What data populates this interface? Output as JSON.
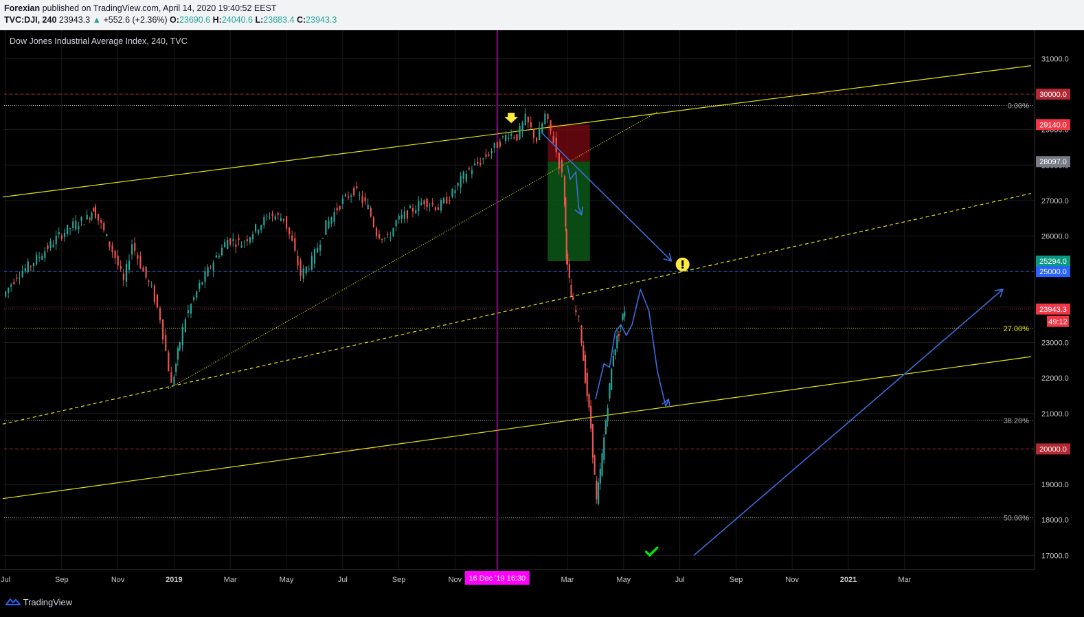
{
  "header": {
    "author": "Forexian",
    "published": "published on TradingView.com, April 14, 2020 19:40:52 EEST",
    "symbol": "TVC:DJI, 240",
    "last": "23943.3",
    "change_arrow": "▲",
    "change": "+552.6 (+2.36%)",
    "o_label": "O:",
    "o": "23690.6",
    "h_label": "H:",
    "h": "24040.6",
    "l_label": "L:",
    "l": "23683.4",
    "c_label": "C:",
    "c": "23943.3"
  },
  "footer": {
    "brand": "TradingView",
    "brand_icon": "tradingview-logo-icon"
  },
  "chart_data": {
    "type": "line",
    "title": "Dow Jones Industrial Average Index, 240, TVC",
    "ylim": [
      16600,
      31800
    ],
    "y_ticks": [
      "31000.0",
      "30000.0",
      "29000.0",
      "28000.0",
      "27000.0",
      "26000.0",
      "25000.0",
      "24000.0",
      "23000.0",
      "22000.0",
      "21000.0",
      "20000.0",
      "19000.0",
      "18000.0",
      "17000.0"
    ],
    "x_ticks": [
      "Jul",
      "Sep",
      "Nov",
      "2019",
      "Mar",
      "May",
      "Jul",
      "Sep",
      "Nov",
      "Mar",
      "May",
      "Jul",
      "Sep",
      "Nov",
      "2021",
      "Mar"
    ],
    "x_tick_month_index": [
      0,
      2,
      4,
      6,
      8,
      10,
      12,
      14,
      16,
      20,
      22,
      24,
      26,
      28,
      30,
      32
    ],
    "x_label_start": "Jul 2018",
    "x_last_month_index": 37.2,
    "series": [
      {
        "values_by_month_index": [
          [
            0,
            24300
          ],
          [
            0.5,
            24900
          ],
          [
            1,
            25200
          ],
          [
            1.5,
            25600
          ],
          [
            2,
            26000
          ],
          [
            2.5,
            26300
          ],
          [
            3,
            26500
          ],
          [
            3.2,
            26800
          ],
          [
            3.5,
            26300
          ],
          [
            4,
            25400
          ],
          [
            4.3,
            24700
          ],
          [
            4.6,
            25800
          ],
          [
            5,
            25000
          ],
          [
            5.3,
            24500
          ],
          [
            5.6,
            23700
          ],
          [
            6,
            21800
          ],
          [
            6.2,
            22700
          ],
          [
            6.5,
            23700
          ],
          [
            7,
            24600
          ],
          [
            7.5,
            25300
          ],
          [
            8,
            25900
          ],
          [
            8.5,
            25800
          ],
          [
            9,
            26200
          ],
          [
            9.5,
            26600
          ],
          [
            10,
            26500
          ],
          [
            10.3,
            25800
          ],
          [
            10.6,
            24900
          ],
          [
            11,
            25300
          ],
          [
            11.5,
            26300
          ],
          [
            12,
            26900
          ],
          [
            12.5,
            27300
          ],
          [
            13,
            26800
          ],
          [
            13.3,
            26100
          ],
          [
            13.7,
            25900
          ],
          [
            14,
            26400
          ],
          [
            14.5,
            26700
          ],
          [
            15,
            27000
          ],
          [
            15.5,
            26800
          ],
          [
            16,
            27200
          ],
          [
            16.5,
            27800
          ],
          [
            17,
            28100
          ],
          [
            17.5,
            28500
          ],
          [
            18,
            28900
          ],
          [
            18.3,
            28800
          ],
          [
            18.6,
            29300
          ],
          [
            19,
            28700
          ],
          [
            19.3,
            29400
          ],
          [
            19.6,
            28700
          ],
          [
            19.9,
            27700
          ],
          [
            20,
            25500
          ],
          [
            20.2,
            24300
          ],
          [
            20.5,
            23600
          ],
          [
            20.7,
            22000
          ],
          [
            20.9,
            20600
          ],
          [
            21.1,
            18500
          ],
          [
            21.3,
            19800
          ],
          [
            21.5,
            21300
          ],
          [
            21.7,
            22700
          ],
          [
            21.9,
            23300
          ],
          [
            22.1,
            23943.3
          ]
        ]
      }
    ],
    "annotations": {
      "horizontal_levels": [
        {
          "value": 30000,
          "style": "red-dashed"
        },
        {
          "value": 25000,
          "style": "blue-dashed"
        },
        {
          "value": 23943.3,
          "style": "red-dotted"
        },
        {
          "value": 20000,
          "style": "red-dashed"
        }
      ],
      "fib_levels": [
        {
          "label": "0.00%",
          "value": 29680
        },
        {
          "label": "27.00%",
          "value": 23400
        },
        {
          "label": "38.20%",
          "value": 20800
        },
        {
          "label": "50.00%",
          "value": 18060
        }
      ],
      "position_tool": {
        "stop": 29140,
        "entry": 28097,
        "target": 25294
      },
      "vertical_marker": {
        "label": "16 Dec '19   16:30",
        "month_index": 17.5
      },
      "price_tags": [
        {
          "label": "30000.0",
          "color": "#b22833"
        },
        {
          "label": "29140.0",
          "color": "#f23645"
        },
        {
          "label": "28097.0",
          "color": "#787b86"
        },
        {
          "label": "25294.0",
          "color": "#089981"
        },
        {
          "label": "25000.0",
          "color": "#2962ff"
        },
        {
          "label": "23943.3",
          "color": "#f23645"
        },
        {
          "label": "49:12",
          "color": "#f23645"
        },
        {
          "label": "20000.0",
          "color": "#b22833"
        }
      ],
      "icons": [
        "down-arrow-marker-icon",
        "exclamation-marker-icon",
        "checkmark-icon"
      ]
    },
    "colors": {
      "up_candle": "#26a69a",
      "down_candle": "#ef5350",
      "channel": "#e6e600",
      "projection": "#3c6ee0",
      "marker": "#ff00ff",
      "grid": "#1b1b1b"
    }
  }
}
